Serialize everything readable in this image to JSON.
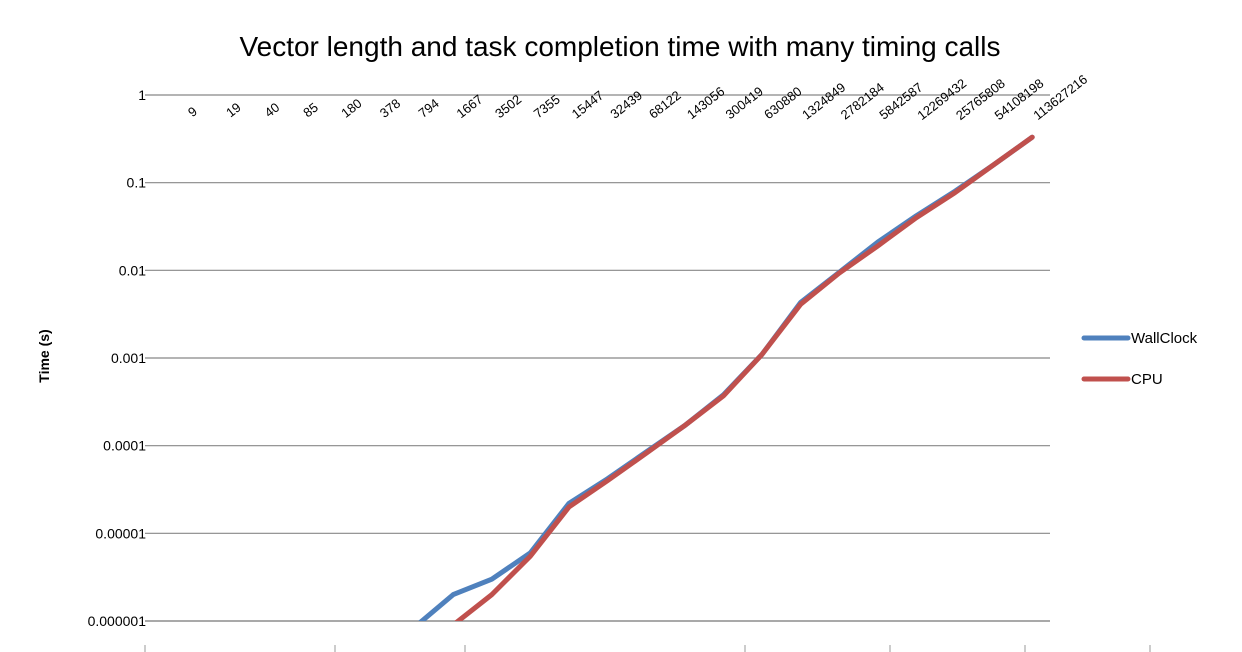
{
  "chart_data": {
    "type": "line",
    "title": "Vector length and task completion time with many timing calls",
    "xlabel": "",
    "ylabel": "Time (s)",
    "yscale": "log",
    "ylim": [
      1e-06,
      1
    ],
    "yticks": [
      "0.000001",
      "0.00001",
      "0.0001",
      "0.001",
      "0.01",
      "0.1",
      "1"
    ],
    "categories": [
      "9",
      "19",
      "40",
      "85",
      "180",
      "378",
      "794",
      "1667",
      "3502",
      "7355",
      "15447",
      "32439",
      "68122",
      "143056",
      "300419",
      "630880",
      "1324849",
      "2782184",
      "5842587",
      "12269432",
      "25765808",
      "54108198",
      "113627216"
    ],
    "series": [
      {
        "name": "WallClock",
        "color": "#4f81bd",
        "values": [
          null,
          null,
          null,
          null,
          null,
          null,
          8.5e-07,
          2e-06,
          3e-06,
          6e-06,
          2.2e-05,
          4.2e-05,
          8.5e-05,
          0.00017,
          0.00038,
          0.0011,
          0.0043,
          0.0095,
          0.021,
          0.042,
          0.08,
          0.16,
          0.33
        ]
      },
      {
        "name": "CPU",
        "color": "#c0504d",
        "values": [
          null,
          null,
          null,
          null,
          null,
          null,
          null,
          9e-07,
          2e-06,
          5.5e-06,
          2e-05,
          4e-05,
          8.2e-05,
          0.00017,
          0.00037,
          0.0011,
          0.0041,
          0.0093,
          0.019,
          0.04,
          0.077,
          0.16,
          0.33
        ]
      }
    ],
    "grid": true,
    "legend": "right"
  }
}
